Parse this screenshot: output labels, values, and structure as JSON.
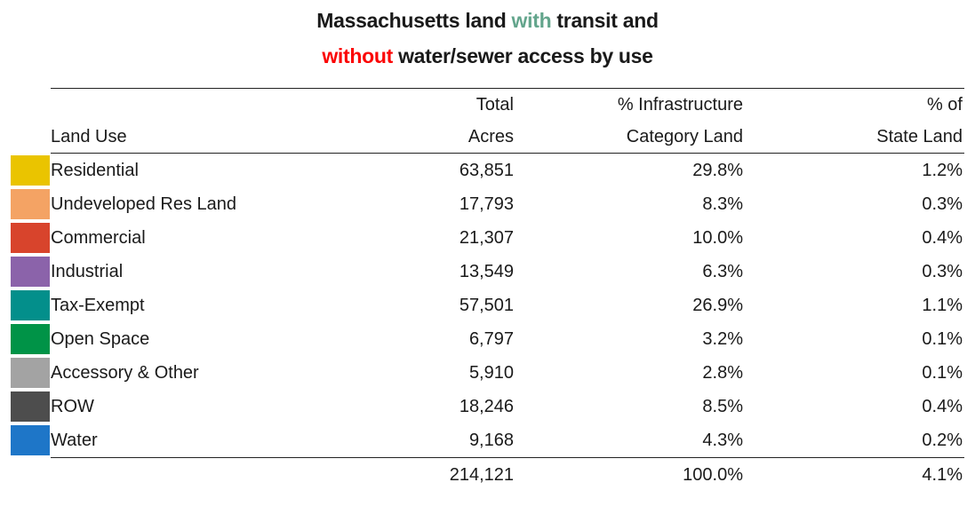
{
  "title": {
    "line1_prefix": "Massachusetts land ",
    "line1_highlight": "with",
    "line1_suffix": " transit and",
    "line2_highlight": "without",
    "line2_suffix": " water/sewer access by use",
    "highlight_with_color": "#63A58C",
    "highlight_without_color": "#FB0505"
  },
  "table": {
    "header": {
      "land_use": "Land Use",
      "acres_line1": "Total",
      "acres_line2": "Acres",
      "infra_line1": "% Infrastructure",
      "infra_line2": "Category Land",
      "state_line1": "% of",
      "state_line2": "State Land"
    },
    "rows": [
      {
        "label": "Residential",
        "color": "#EAC400",
        "acres": "63,851",
        "pct_infra": "29.8%",
        "pct_state": "1.2%"
      },
      {
        "label": "Undeveloped Res Land",
        "color": "#F4A364",
        "acres": "17,793",
        "pct_infra": "8.3%",
        "pct_state": "0.3%"
      },
      {
        "label": "Commercial",
        "color": "#D8442C",
        "acres": "21,307",
        "pct_infra": "10.0%",
        "pct_state": "0.4%"
      },
      {
        "label": "Industrial",
        "color": "#8B63AA",
        "acres": "13,549",
        "pct_infra": "6.3%",
        "pct_state": "0.3%"
      },
      {
        "label": "Tax-Exempt",
        "color": "#038F8B",
        "acres": "57,501",
        "pct_infra": "26.9%",
        "pct_state": "1.1%"
      },
      {
        "label": "Open Space",
        "color": "#009347",
        "acres": "6,797",
        "pct_infra": "3.2%",
        "pct_state": "0.1%"
      },
      {
        "label": "Accessory & Other",
        "color": "#A3A3A3",
        "acres": "5,910",
        "pct_infra": "2.8%",
        "pct_state": "0.1%"
      },
      {
        "label": "ROW",
        "color": "#4D4D4D",
        "acres": "18,246",
        "pct_infra": "8.5%",
        "pct_state": "0.4%"
      },
      {
        "label": "Water",
        "color": "#1E76C8",
        "acres": "9,168",
        "pct_infra": "4.3%",
        "pct_state": "0.2%"
      }
    ],
    "total": {
      "acres": "214,121",
      "pct_infra": "100.0%",
      "pct_state": "4.1%"
    }
  },
  "chart_data": {
    "type": "table",
    "title": "Massachusetts land with transit and without water/sewer access by use",
    "columns": [
      "Land Use",
      "Total Acres",
      "% Infrastructure Category Land",
      "% of State Land"
    ],
    "rows": [
      {
        "land_use": "Residential",
        "total_acres": 63851,
        "pct_infrastructure_category_land": 29.8,
        "pct_of_state_land": 1.2,
        "swatch_color": "#EAC400"
      },
      {
        "land_use": "Undeveloped Res Land",
        "total_acres": 17793,
        "pct_infrastructure_category_land": 8.3,
        "pct_of_state_land": 0.3,
        "swatch_color": "#F4A364"
      },
      {
        "land_use": "Commercial",
        "total_acres": 21307,
        "pct_infrastructure_category_land": 10.0,
        "pct_of_state_land": 0.4,
        "swatch_color": "#D8442C"
      },
      {
        "land_use": "Industrial",
        "total_acres": 13549,
        "pct_infrastructure_category_land": 6.3,
        "pct_of_state_land": 0.3,
        "swatch_color": "#8B63AA"
      },
      {
        "land_use": "Tax-Exempt",
        "total_acres": 57501,
        "pct_infrastructure_category_land": 26.9,
        "pct_of_state_land": 1.1,
        "swatch_color": "#038F8B"
      },
      {
        "land_use": "Open Space",
        "total_acres": 6797,
        "pct_infrastructure_category_land": 3.2,
        "pct_of_state_land": 0.1,
        "swatch_color": "#009347"
      },
      {
        "land_use": "Accessory & Other",
        "total_acres": 5910,
        "pct_infrastructure_category_land": 2.8,
        "pct_of_state_land": 0.1,
        "swatch_color": "#A3A3A3"
      },
      {
        "land_use": "ROW",
        "total_acres": 18246,
        "pct_infrastructure_category_land": 8.5,
        "pct_of_state_land": 0.4,
        "swatch_color": "#4D4D4D"
      },
      {
        "land_use": "Water",
        "total_acres": 9168,
        "pct_infrastructure_category_land": 4.3,
        "pct_of_state_land": 0.2,
        "swatch_color": "#1E76C8"
      }
    ],
    "total_row": {
      "total_acres": 214121,
      "pct_infrastructure_category_land": 100.0,
      "pct_of_state_land": 4.1
    }
  }
}
